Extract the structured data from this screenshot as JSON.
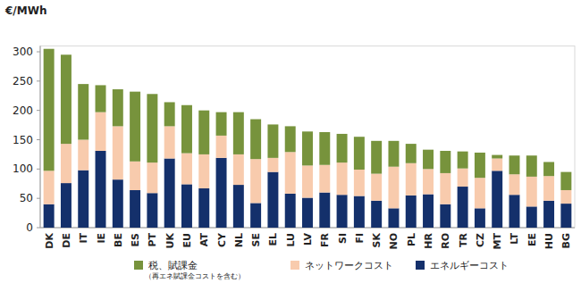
{
  "chart_data": {
    "type": "bar",
    "stacked": true,
    "y_label": "€/MWh",
    "categories": [
      "DK",
      "DE",
      "IT",
      "IE",
      "BE",
      "ES",
      "PT",
      "UK",
      "EU",
      "AT",
      "CY",
      "NL",
      "SE",
      "EL",
      "LU",
      "LV",
      "FR",
      "SI",
      "FI",
      "SK",
      "NO",
      "PL",
      "HR",
      "RO",
      "TR",
      "CZ",
      "MT",
      "LT",
      "EE",
      "HU",
      "BG"
    ],
    "series": [
      {
        "name": "エネルギーコスト",
        "color": "#14306b",
        "values": [
          40,
          76,
          98,
          131,
          82,
          64,
          59,
          118,
          74,
          67,
          119,
          73,
          42,
          95,
          58,
          51,
          60,
          56,
          54,
          46,
          33,
          55,
          57,
          40,
          70,
          33,
          97,
          56,
          36,
          46,
          41
        ]
      },
      {
        "name": "ネットワークコスト",
        "color": "#f8cbad",
        "values": [
          57,
          67,
          52,
          66,
          91,
          49,
          52,
          55,
          53,
          58,
          38,
          52,
          75,
          24,
          71,
          55,
          47,
          55,
          45,
          46,
          71,
          55,
          43,
          53,
          31,
          52,
          21,
          35,
          51,
          42,
          23
        ]
      },
      {
        "name": "税、賦課金",
        "color": "#77933c",
        "values": [
          208,
          152,
          95,
          46,
          63,
          119,
          117,
          41,
          82,
          75,
          40,
          72,
          68,
          57,
          44,
          58,
          56,
          49,
          56,
          56,
          44,
          33,
          33,
          38,
          29,
          43,
          6,
          32,
          36,
          24,
          31
        ]
      }
    ],
    "annotations": [
      "（再エネ賦課金コストを含む）"
    ],
    "ylim": [
      0,
      310
    ],
    "yticks": [
      0,
      50,
      100,
      150,
      200,
      250,
      300
    ],
    "grid": false,
    "legend": "bottom"
  }
}
